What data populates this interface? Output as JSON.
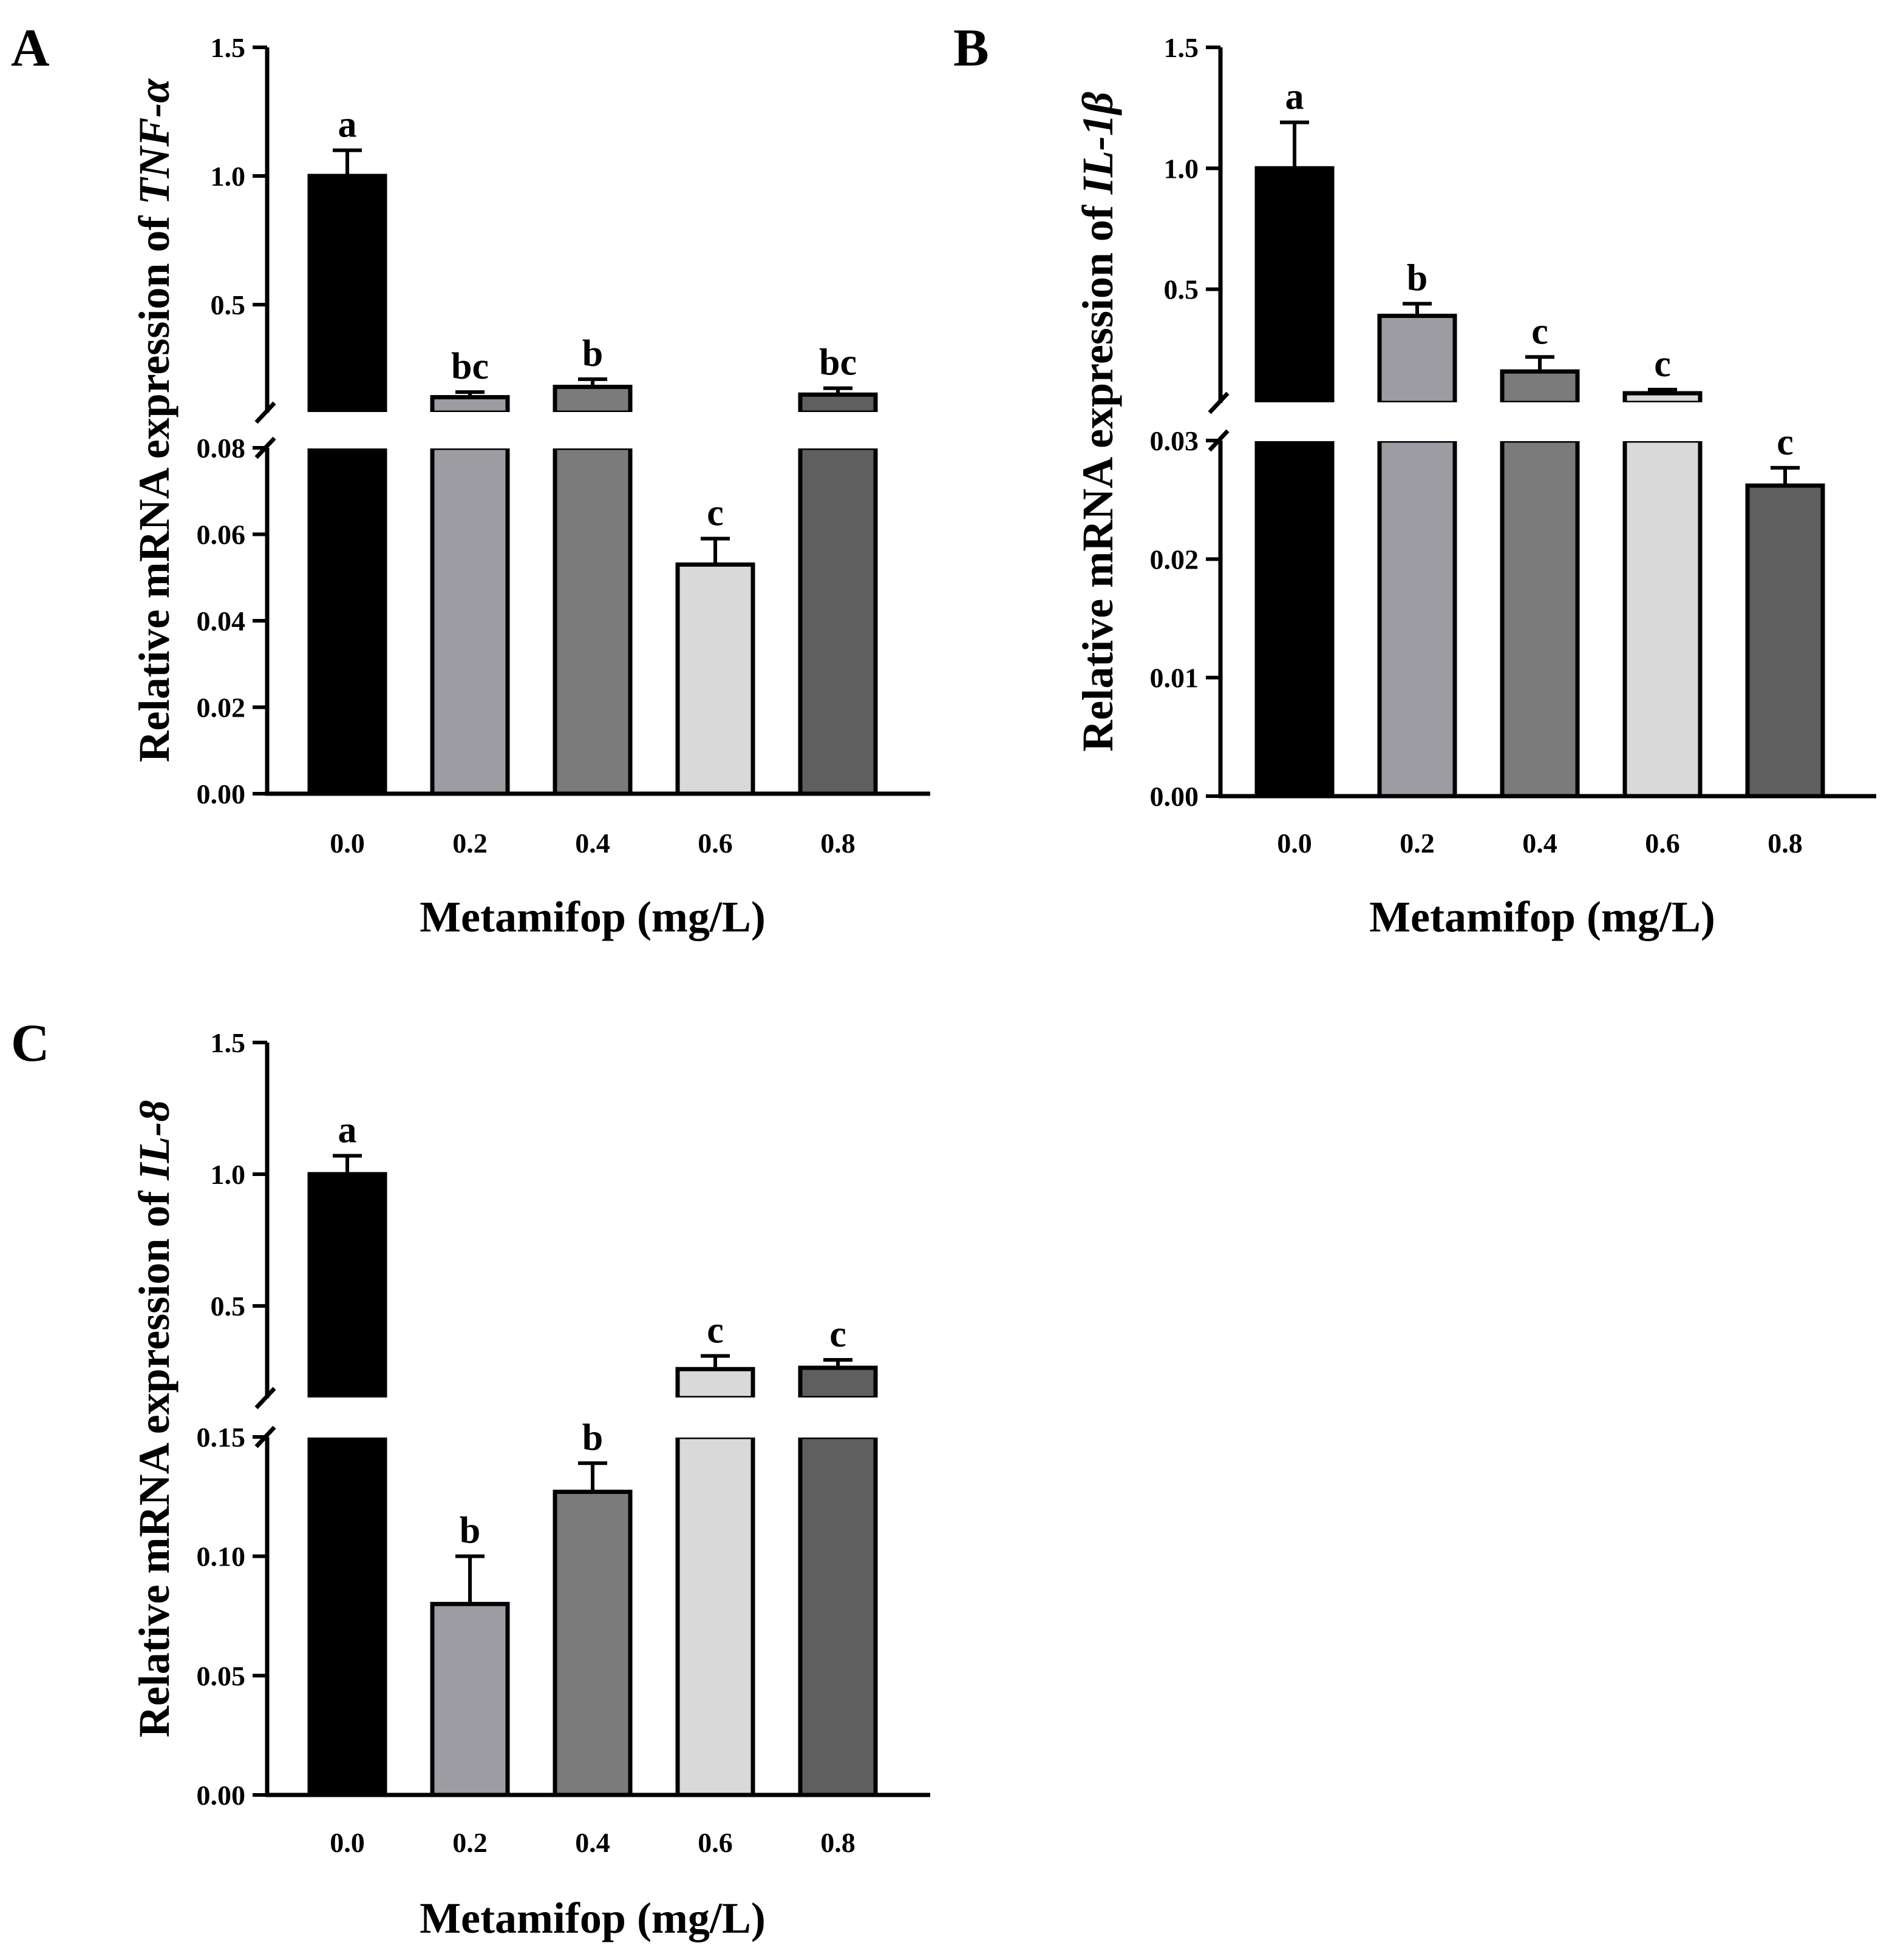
{
  "colors": {
    "bar_fills": [
      "#000000",
      "#9c9ca2",
      "#7b7b7b",
      "#d9d9d9",
      "#5f5f5f"
    ],
    "axis": "#000000"
  },
  "chart_data": [
    {
      "type": "bar",
      "panel": "A",
      "categories": [
        "0.0",
        "0.2",
        "0.4",
        "0.6",
        "0.8"
      ],
      "values": [
        1.0,
        0.14,
        0.18,
        0.053,
        0.15
      ],
      "errors": [
        0.1,
        0.02,
        0.03,
        0.006,
        0.025
      ],
      "significance": [
        "a",
        "bc",
        "b",
        "c",
        "bc"
      ],
      "xlabel": "Metamifop (mg/L)",
      "ylabel": "Relative mRNA expression of ",
      "ylabel_gene": "TNF-α",
      "broken_y_axis": true,
      "ylim_lower": [
        0,
        0.08
      ],
      "yticks_lower": [
        "0.00",
        "0.02",
        "0.04",
        "0.06",
        "0.08"
      ],
      "ylim_upper": [
        0.08,
        1.5
      ],
      "yticks_upper": [
        "0.5",
        "1.0",
        "1.5"
      ]
    },
    {
      "type": "bar",
      "panel": "B",
      "categories": [
        "0.0",
        "0.2",
        "0.4",
        "0.6",
        "0.8"
      ],
      "values": [
        1.0,
        0.39,
        0.16,
        0.07,
        0.0262
      ],
      "errors": [
        0.19,
        0.05,
        0.06,
        0.015,
        0.0015
      ],
      "significance": [
        "a",
        "b",
        "c",
        "c",
        "c"
      ],
      "xlabel": "Metamifop (mg/L)",
      "ylabel": "Relative mRNA expression of ",
      "ylabel_gene": "IL-1β",
      "broken_y_axis": true,
      "ylim_lower": [
        0,
        0.03
      ],
      "yticks_lower": [
        "0.00",
        "0.01",
        "0.02",
        "0.03"
      ],
      "ylim_upper": [
        0.03,
        1.5
      ],
      "yticks_upper": [
        "0.5",
        "1.0",
        "1.5"
      ]
    },
    {
      "type": "bar",
      "panel": "C",
      "categories": [
        "0.0",
        "0.2",
        "0.4",
        "0.6",
        "0.8"
      ],
      "values": [
        1.0,
        0.08,
        0.127,
        0.26,
        0.265
      ],
      "errors": [
        0.07,
        0.02,
        0.012,
        0.05,
        0.03
      ],
      "significance": [
        "a",
        "b",
        "b",
        "c",
        "c"
      ],
      "xlabel": "Metamifop (mg/L)",
      "ylabel": "Relative mRNA expression of ",
      "ylabel_gene": "IL-8",
      "broken_y_axis": true,
      "ylim_lower": [
        0,
        0.15
      ],
      "yticks_lower": [
        "0.00",
        "0.05",
        "0.10",
        "0.15"
      ],
      "ylim_upper": [
        0.15,
        1.5
      ],
      "yticks_upper": [
        "0.5",
        "1.0",
        "1.5"
      ]
    }
  ]
}
